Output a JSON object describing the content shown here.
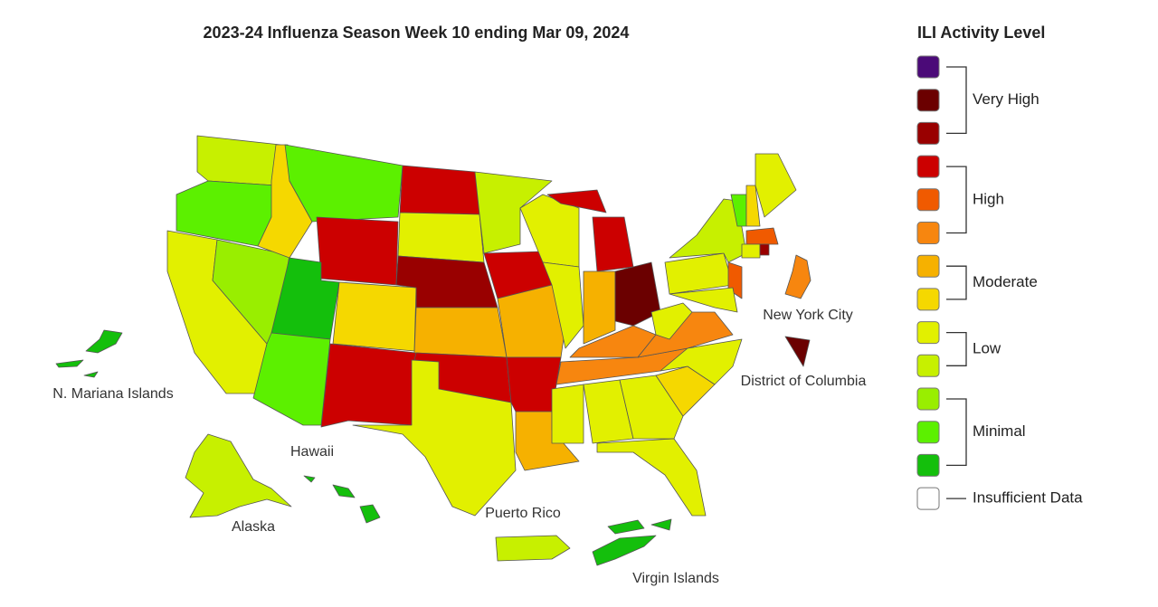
{
  "title": "2023-24 Influenza Season Week 10 ending Mar 09, 2024",
  "map": {
    "labels": [
      "N. Mariana Islands",
      "Hawaii",
      "Alaska",
      "Puerto Rico",
      "Virgin Islands",
      "New York City",
      "District of Columbia"
    ]
  },
  "legend": {
    "title": "ILI Activity Level",
    "levels": [
      {
        "label": "Very High",
        "colors": [
          "#4b0a78",
          "#6b0000",
          "#990000"
        ]
      },
      {
        "label": "High",
        "colors": [
          "#cc0000",
          "#f05a00",
          "#f7860f"
        ]
      },
      {
        "label": "Moderate",
        "colors": [
          "#f6b100",
          "#f5d800"
        ]
      },
      {
        "label": "Low",
        "colors": [
          "#e2f000",
          "#c7f000"
        ]
      },
      {
        "label": "Minimal",
        "colors": [
          "#99ee00",
          "#5cf000",
          "#14bf0c"
        ]
      },
      {
        "label": "Insufficient Data",
        "colors": [
          "#ffffff"
        ]
      }
    ]
  }
}
